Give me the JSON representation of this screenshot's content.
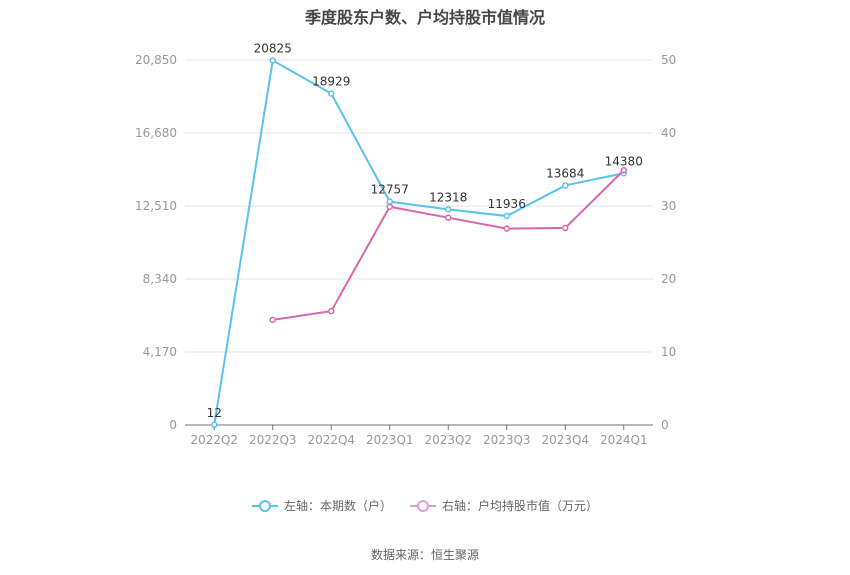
{
  "title": "季度股东户数、户均持股市值情况",
  "source": "数据来源：恒生聚源",
  "legend": [
    {
      "label": "左轴：本期数（户）",
      "color": "#5bc2f0"
    },
    {
      "label": "右轴：户均持股市值（万元）",
      "color": "#e39bcb"
    }
  ],
  "chart_data": {
    "type": "line",
    "title": "季度股东户数、户均持股市值情况",
    "categories": [
      "2022Q2",
      "2022Q3",
      "2022Q4",
      "2023Q1",
      "2023Q2",
      "2023Q3",
      "2023Q4",
      "2024Q1"
    ],
    "left_axis": {
      "label": "本期数（户）",
      "ticks": [
        "0",
        "4,170",
        "8,340",
        "12,510",
        "16,680",
        "20,850"
      ],
      "range": [
        0,
        20850
      ]
    },
    "right_axis": {
      "label": "户均持股市值（万元）",
      "ticks": [
        "0",
        "10",
        "20",
        "30",
        "40",
        "50"
      ],
      "range": [
        0,
        50
      ]
    },
    "series": [
      {
        "name": "左轴：本期数（户）",
        "axis": "left",
        "color": "#5bc2f0",
        "values": [
          12,
          20825,
          18929,
          12757,
          12318,
          11936,
          13684,
          14380
        ],
        "labels": [
          "12",
          "20825",
          "18929",
          "12757",
          "12318",
          "11936",
          "13684",
          "14380"
        ]
      },
      {
        "name": "右轴：户均持股市值（万元）",
        "axis": "right",
        "color": "#d966b0",
        "values": [
          null,
          14.4,
          15.6,
          29.9,
          28.4,
          26.9,
          27.0,
          34.9
        ]
      }
    ],
    "grid": true,
    "legend_position": "bottom"
  }
}
